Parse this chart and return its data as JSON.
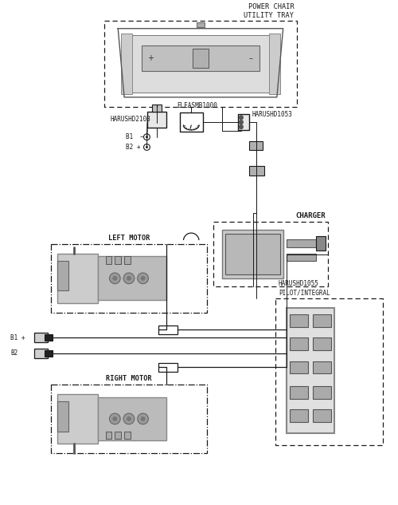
{
  "bg_color": "#ffffff",
  "line_color": "#1a1a1a",
  "labels": {
    "power_chair": "POWER CHAIR\nUTILITY TRAY",
    "charger": "CHARGER",
    "left_motor": "LEFT MOTOR",
    "right_motor": "RIGHT MOTOR",
    "harushd2103": "HARUSHD2103",
    "eleasmb1000": "ELEASMB1000",
    "harushd1053": "HARUSHD1053",
    "harushd1055": "HARUSHD1055\nPILOT/INTEGRAL",
    "b1_minus": "B1  –",
    "b2_plus": "B2 +",
    "b1_plus": "B1 +",
    "b2": "B2"
  },
  "figsize": [
    5.0,
    6.33
  ],
  "dpi": 100
}
